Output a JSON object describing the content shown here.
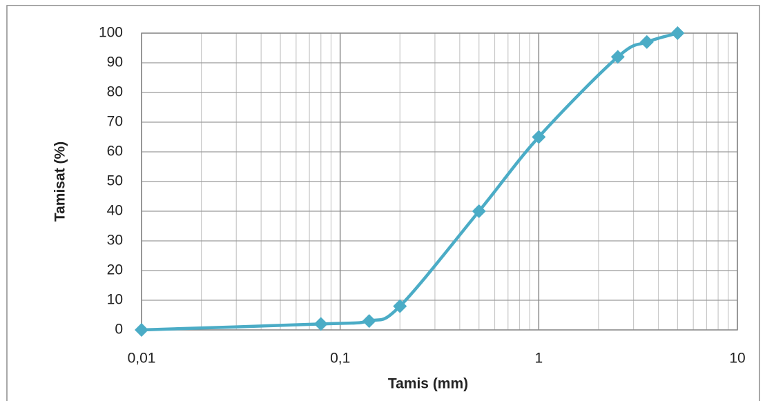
{
  "chart_data": {
    "type": "line",
    "x_label": "Tamis (mm)",
    "y_label": "Tamisat (%)",
    "x": [
      0.01,
      0.08,
      0.14,
      0.2,
      0.5,
      1,
      2.5,
      3.5,
      5
    ],
    "series": [
      {
        "color": "#4bacc6",
        "values": [
          0,
          2,
          3,
          8,
          40,
          65,
          92,
          97,
          100
        ]
      }
    ],
    "x_log": true,
    "smooth": true,
    "marker": "diamond",
    "xlim": [
      0.01,
      10
    ],
    "xticks": [
      {
        "value": 0.01,
        "label": "0,01"
      },
      {
        "value": 0.1,
        "label": "0,1"
      },
      1,
      10
    ],
    "ylim": [
      0,
      100
    ],
    "yticks": [
      0,
      10,
      20,
      30,
      40,
      50,
      60,
      70,
      80,
      90,
      100
    ],
    "grid": true,
    "minor_grid": true
  }
}
